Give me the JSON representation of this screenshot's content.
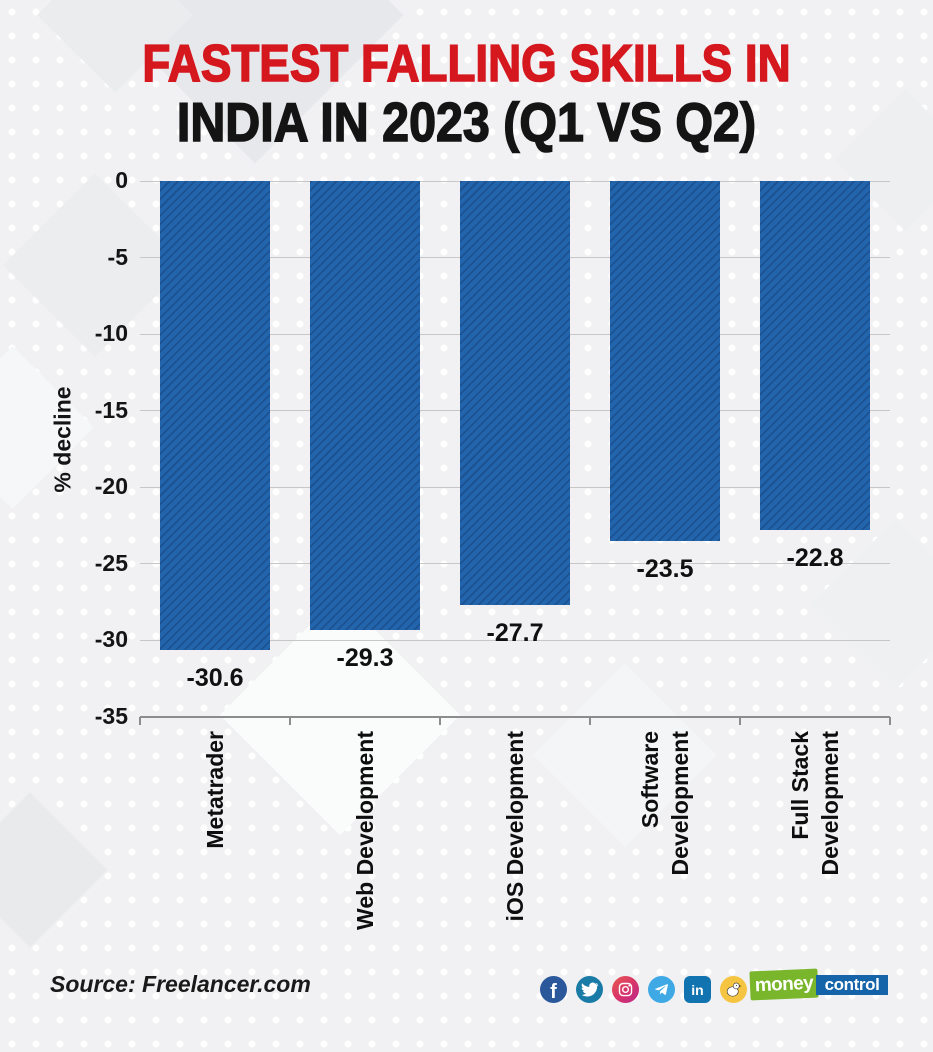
{
  "title": {
    "line1": "FASTEST FALLING SKILLS IN",
    "line2": "INDIA IN 2023 (Q1 VS Q2)"
  },
  "chart_data": {
    "type": "bar",
    "title": "FASTEST FALLING SKILLS IN INDIA IN 2023 (Q1 VS Q2)",
    "categories": [
      "Metatrader",
      "Web Development",
      "iOS Development",
      "Software Development",
      "Full Stack Development"
    ],
    "category_lines": [
      [
        "Metatrader"
      ],
      [
        "Web Development"
      ],
      [
        "iOS Development"
      ],
      [
        "Software",
        "Development"
      ],
      [
        "Full Stack",
        "Development"
      ]
    ],
    "values": [
      -30.6,
      -29.3,
      -27.7,
      -23.5,
      -22.8
    ],
    "value_labels": [
      "-30.6",
      "-29.3",
      "-27.7",
      "-23.5",
      "-22.8"
    ],
    "xlabel": "",
    "ylabel": "% decline",
    "ylim": [
      -35,
      0
    ],
    "yticks": [
      0,
      -5,
      -10,
      -15,
      -20,
      -25,
      -30,
      -35
    ],
    "ytick_labels": [
      "0",
      "-5",
      "-10",
      "-15",
      "-20",
      "-25",
      "-30",
      "-35"
    ],
    "grid": true,
    "legend": "none",
    "bar_hatch": "diagonal-stripes"
  },
  "footer": {
    "source_label": "Source: Freelancer.com",
    "social": [
      {
        "name": "facebook-icon",
        "color": "#2b579b",
        "glyph": "f"
      },
      {
        "name": "twitter-icon",
        "color": "#1a7ba6",
        "glyph": "bird"
      },
      {
        "name": "instagram-icon",
        "color": "#d6336c",
        "glyph": "camera"
      },
      {
        "name": "telegram-icon",
        "color": "#3fa9e5",
        "glyph": "paper-plane"
      },
      {
        "name": "linkedin-icon",
        "color": "#1173af",
        "glyph": "in"
      },
      {
        "name": "koo-icon",
        "color": "#f5c542",
        "glyph": "koo-bird"
      }
    ],
    "brand": {
      "part1": "money",
      "part2": "control"
    }
  },
  "colors": {
    "title_red": "#d5171e",
    "title_black": "#141414",
    "bar_blue": "#2365ad",
    "bar_stripe": "rgba(10,40,82,0.30)",
    "grid_gray": "#c7c7c7",
    "axis_gray": "#8c8c8c",
    "mc_green": "#7ab62c",
    "mc_blue": "#1563a8",
    "background": "#f1f1f3"
  }
}
